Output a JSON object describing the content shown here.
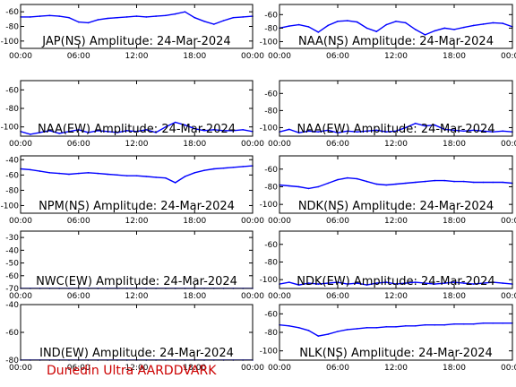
{
  "footer_label": "Dunedin Ultra AARDDVARK",
  "colors": {
    "series": "#0000ff",
    "footer": "#cc0000",
    "axis": "#000000"
  },
  "chart_data": [
    {
      "type": "line",
      "title": "JAP(NS) Amplitude: 24-Mar-2024",
      "x_ticks": [
        "00:00",
        "06:00",
        "12:00",
        "18:00",
        "00:00"
      ],
      "y_ticks": [
        -100,
        -80,
        -60
      ],
      "ylim": [
        -110,
        -50
      ],
      "x": [
        0,
        1,
        2,
        3,
        4,
        5,
        6,
        7,
        8,
        9,
        10,
        11,
        12,
        13,
        14,
        15,
        16,
        17,
        18,
        19,
        20,
        21,
        22,
        23,
        24
      ],
      "y": [
        -67,
        -67,
        -66,
        -65,
        -66,
        -68,
        -74,
        -75,
        -71,
        -69,
        -68,
        -67,
        -66,
        -67,
        -66,
        -65,
        -63,
        -60,
        -68,
        -73,
        -77,
        -72,
        -68,
        -67,
        -66
      ]
    },
    {
      "type": "line",
      "title": "NAA(NS) Amplitude: 24-Mar-2024",
      "x_ticks": [
        "00:00",
        "06:00",
        "12:00",
        "18:00",
        "00:00"
      ],
      "y_ticks": [
        -100,
        -80,
        -60
      ],
      "ylim": [
        -110,
        -45
      ],
      "x": [
        0,
        1,
        2,
        3,
        4,
        5,
        6,
        7,
        8,
        9,
        10,
        11,
        12,
        13,
        14,
        15,
        16,
        17,
        18,
        19,
        20,
        21,
        22,
        23,
        24
      ],
      "y": [
        -80,
        -77,
        -75,
        -78,
        -86,
        -76,
        -70,
        -69,
        -71,
        -80,
        -85,
        -75,
        -70,
        -72,
        -82,
        -90,
        -84,
        -80,
        -82,
        -79,
        -76,
        -74,
        -72,
        -73,
        -78
      ]
    },
    {
      "type": "line",
      "title": "NAA(EW) Amplitude: 24-Mar-2024",
      "x_ticks": [
        "00:00",
        "06:00",
        "12:00",
        "18:00",
        "00:00"
      ],
      "y_ticks": [
        -100,
        -80,
        -60
      ],
      "ylim": [
        -110,
        -50
      ],
      "x": [
        0,
        1,
        2,
        3,
        4,
        5,
        6,
        7,
        8,
        9,
        10,
        11,
        12,
        13,
        14,
        15,
        16,
        17,
        18,
        19,
        20,
        21,
        22,
        23,
        24
      ],
      "y": [
        -105,
        -108,
        -106,
        -104,
        -107,
        -105,
        -103,
        -106,
        -104,
        -105,
        -106,
        -104,
        -105,
        -103,
        -106,
        -100,
        -95,
        -98,
        -102,
        -104,
        -103,
        -104,
        -104,
        -103,
        -105
      ]
    },
    {
      "type": "line",
      "title": "NAA(EW) Amplitude: 24-Mar-2024",
      "x_ticks": [
        "00:00",
        "06:00",
        "12:00",
        "18:00",
        "00:00"
      ],
      "y_ticks": [
        -100,
        -80,
        -60
      ],
      "ylim": [
        -110,
        -45
      ],
      "x": [
        0,
        1,
        2,
        3,
        4,
        5,
        6,
        7,
        8,
        9,
        10,
        11,
        12,
        13,
        14,
        15,
        16,
        17,
        18,
        19,
        20,
        21,
        22,
        23,
        24
      ],
      "y": [
        -105,
        -102,
        -106,
        -104,
        -105,
        -103,
        -106,
        -104,
        -105,
        -104,
        -103,
        -105,
        -104,
        -100,
        -95,
        -98,
        -97,
        -102,
        -103,
        -104,
        -103,
        -104,
        -105,
        -104,
        -105
      ]
    },
    {
      "type": "line",
      "title": "NPM(NS) Amplitude: 24-Mar-2024",
      "x_ticks": [
        "00:00",
        "06:00",
        "12:00",
        "18:00",
        "00:00"
      ],
      "y_ticks": [
        -100,
        -80,
        -60,
        -40
      ],
      "ylim": [
        -110,
        -35
      ],
      "x": [
        0,
        1,
        2,
        3,
        4,
        5,
        6,
        7,
        8,
        9,
        10,
        11,
        12,
        13,
        14,
        15,
        16,
        17,
        18,
        19,
        20,
        21,
        22,
        23,
        24
      ],
      "y": [
        -52,
        -53,
        -55,
        -57,
        -58,
        -59,
        -58,
        -57,
        -58,
        -59,
        -60,
        -61,
        -61,
        -62,
        -63,
        -64,
        -70,
        -62,
        -57,
        -54,
        -52,
        -51,
        -50,
        -49,
        -48
      ]
    },
    {
      "type": "line",
      "title": "NDK(NS) Amplitude: 24-Mar-2024",
      "x_ticks": [
        "00:00",
        "06:00",
        "12:00",
        "18:00",
        "00:00"
      ],
      "y_ticks": [
        -100,
        -80,
        -60
      ],
      "ylim": [
        -110,
        -45
      ],
      "x": [
        0,
        1,
        2,
        3,
        4,
        5,
        6,
        7,
        8,
        9,
        10,
        11,
        12,
        13,
        14,
        15,
        16,
        17,
        18,
        19,
        20,
        21,
        22,
        23,
        24
      ],
      "y": [
        -78,
        -79,
        -80,
        -82,
        -80,
        -76,
        -72,
        -70,
        -71,
        -74,
        -77,
        -78,
        -77,
        -76,
        -75,
        -74,
        -73,
        -73,
        -74,
        -74,
        -75,
        -75,
        -75,
        -75,
        -76
      ]
    },
    {
      "type": "line",
      "title": "NWC(EW) Amplitude: 24-Mar-2024",
      "x_ticks": [
        "00:00",
        "06:00",
        "12:00",
        "18:00",
        "00:00"
      ],
      "y_ticks": [
        -70,
        -60,
        -50,
        -40,
        -30
      ],
      "ylim": [
        -70,
        -25
      ],
      "x": [
        0,
        1,
        2,
        3,
        4,
        5,
        6,
        7,
        8,
        9,
        10,
        11,
        12,
        13,
        14,
        15,
        16,
        17,
        18,
        19,
        20,
        21,
        22,
        23,
        24
      ],
      "y": [
        -70,
        -70,
        -70,
        -70,
        -70,
        -70,
        -70,
        -70,
        -70,
        -70,
        -70,
        -70,
        -70,
        -70,
        -70,
        -70,
        -70,
        -70,
        -70,
        -70,
        -70,
        -70,
        -70,
        -70,
        -70
      ]
    },
    {
      "type": "line",
      "title": "NDK(EW) Amplitude: 24-Mar-2024",
      "x_ticks": [
        "00:00",
        "06:00",
        "12:00",
        "18:00",
        "00:00"
      ],
      "y_ticks": [
        -100,
        -80,
        -60
      ],
      "ylim": [
        -110,
        -45
      ],
      "x": [
        0,
        1,
        2,
        3,
        4,
        5,
        6,
        7,
        8,
        9,
        10,
        11,
        12,
        13,
        14,
        15,
        16,
        17,
        18,
        19,
        20,
        21,
        22,
        23,
        24
      ],
      "y": [
        -105,
        -103,
        -106,
        -104,
        -105,
        -104,
        -103,
        -105,
        -104,
        -106,
        -104,
        -103,
        -105,
        -104,
        -103,
        -104,
        -105,
        -104,
        -103,
        -104,
        -105,
        -104,
        -103,
        -104,
        -105
      ]
    },
    {
      "type": "line",
      "title": "IND(EW) Amplitude: 24-Mar-2024",
      "x_ticks": [
        "00:00",
        "06:00",
        "12:00",
        "18:00",
        "00:00"
      ],
      "y_ticks": [
        -80,
        -60,
        -40
      ],
      "ylim": [
        -80,
        -40
      ],
      "x": [
        0,
        1,
        2,
        3,
        4,
        5,
        6,
        7,
        8,
        9,
        10,
        11,
        12,
        13,
        14,
        15,
        16,
        17,
        18,
        19,
        20,
        21,
        22,
        23,
        24
      ],
      "y": [
        -80,
        -80,
        -80,
        -80,
        -80,
        -80,
        -80,
        -80,
        -80,
        -80,
        -80,
        -80,
        -80,
        -80,
        -80,
        -80,
        -80,
        -80,
        -80,
        -80,
        -80,
        -80,
        -80,
        -80,
        -80
      ]
    },
    {
      "type": "line",
      "title": "NLK(NS) Amplitude: 24-Mar-2024",
      "x_ticks": [
        "00:00",
        "06:00",
        "12:00",
        "18:00",
        "00:00"
      ],
      "y_ticks": [
        -100,
        -80,
        -60
      ],
      "ylim": [
        -110,
        -50
      ],
      "x": [
        0,
        1,
        2,
        3,
        4,
        5,
        6,
        7,
        8,
        9,
        10,
        11,
        12,
        13,
        14,
        15,
        16,
        17,
        18,
        19,
        20,
        21,
        22,
        23,
        24
      ],
      "y": [
        -72,
        -73,
        -75,
        -78,
        -84,
        -82,
        -79,
        -77,
        -76,
        -75,
        -75,
        -74,
        -74,
        -73,
        -73,
        -72,
        -72,
        -72,
        -71,
        -71,
        -71,
        -70,
        -70,
        -70,
        -70
      ]
    }
  ]
}
